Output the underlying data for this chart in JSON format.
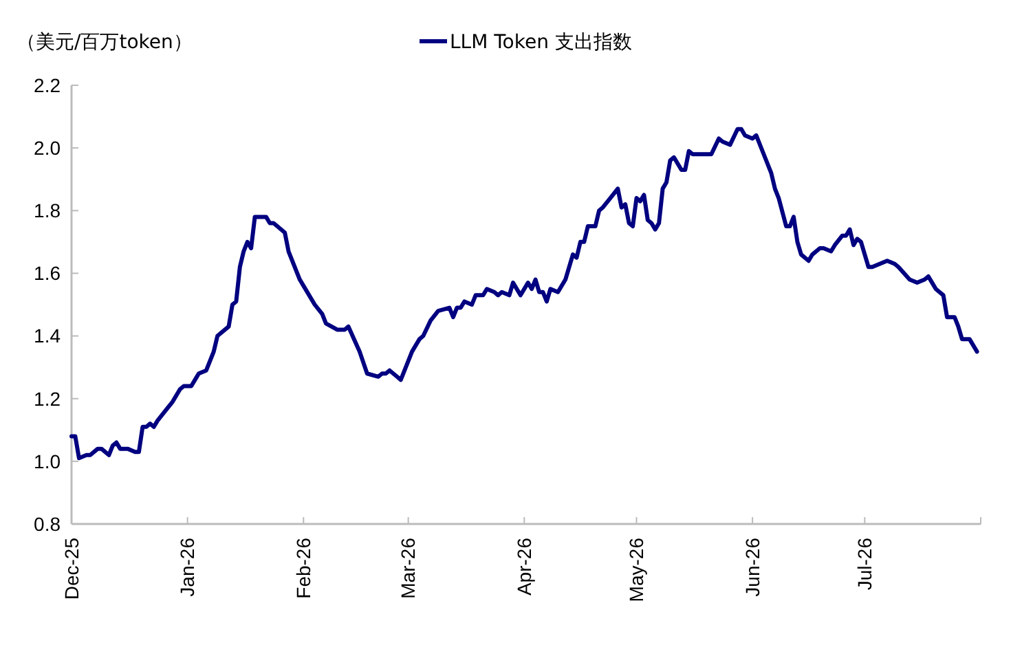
{
  "chart_data": {
    "type": "line",
    "ylabel": "（美元/百万token）",
    "legend": "top",
    "grid": false,
    "line_style": "solid",
    "marker": "none",
    "xlim": [
      "2025-12-01",
      "2026-08-01"
    ],
    "xticks": [
      {
        "value": "2025-12-01",
        "label": "Dec-25"
      },
      {
        "value": "2026-01-01",
        "label": "Jan-26"
      },
      {
        "value": "2026-02-01",
        "label": "Feb-26"
      },
      {
        "value": "2026-03-01",
        "label": "Mar-26"
      },
      {
        "value": "2026-04-01",
        "label": "Apr-26"
      },
      {
        "value": "2026-05-01",
        "label": "May-26"
      },
      {
        "value": "2026-06-01",
        "label": "Jun-26"
      },
      {
        "value": "2026-07-01",
        "label": "Jul-26"
      },
      {
        "value": "2026-08-01",
        "label": null
      }
    ],
    "ylim": [
      0.8,
      2.2
    ],
    "yticks": [
      {
        "value": 0.8,
        "label": "0.8"
      },
      {
        "value": 1.0,
        "label": "1.0"
      },
      {
        "value": 1.2,
        "label": "1.2"
      },
      {
        "value": 1.4,
        "label": "1.4"
      },
      {
        "value": 1.6,
        "label": "1.6"
      },
      {
        "value": 1.8,
        "label": "1.8"
      },
      {
        "value": 2.0,
        "label": "2.0"
      },
      {
        "value": 2.2,
        "label": "2.2"
      }
    ],
    "x": [
      "2025-12-01",
      "2025-12-02",
      "2025-12-03",
      "2025-12-05",
      "2025-12-06",
      "2025-12-08",
      "2025-12-09",
      "2025-12-11",
      "2025-12-12",
      "2025-12-13",
      "2025-12-14",
      "2025-12-16",
      "2025-12-18",
      "2025-12-19",
      "2025-12-20",
      "2025-12-21",
      "2025-12-22",
      "2025-12-23",
      "2025-12-24",
      "2025-12-26",
      "2025-12-28",
      "2025-12-30",
      "2025-12-31",
      "2026-01-02",
      "2026-01-03",
      "2026-01-04",
      "2026-01-06",
      "2026-01-08",
      "2026-01-09",
      "2026-01-12",
      "2026-01-13",
      "2026-01-14",
      "2026-01-15",
      "2026-01-16",
      "2026-01-17",
      "2026-01-18",
      "2026-01-19",
      "2026-01-21",
      "2026-01-22",
      "2026-01-23",
      "2026-01-24",
      "2026-01-25",
      "2026-01-27",
      "2026-01-28",
      "2026-01-31",
      "2026-02-01",
      "2026-02-04",
      "2026-02-06",
      "2026-02-07",
      "2026-02-10",
      "2026-02-12",
      "2026-02-13",
      "2026-02-16",
      "2026-02-18",
      "2026-02-21",
      "2026-02-22",
      "2026-02-23",
      "2026-02-24",
      "2026-02-26",
      "2026-02-27",
      "2026-03-02",
      "2026-03-04",
      "2026-03-05",
      "2026-03-07",
      "2026-03-09",
      "2026-03-12",
      "2026-03-13",
      "2026-03-14",
      "2026-03-15",
      "2026-03-16",
      "2026-03-18",
      "2026-03-19",
      "2026-03-21",
      "2026-03-22",
      "2026-03-24",
      "2026-03-25",
      "2026-03-26",
      "2026-03-28",
      "2026-03-29",
      "2026-03-31",
      "2026-04-02",
      "2026-04-03",
      "2026-04-04",
      "2026-04-05",
      "2026-04-06",
      "2026-04-07",
      "2026-04-08",
      "2026-04-10",
      "2026-04-12",
      "2026-04-14",
      "2026-04-15",
      "2026-04-16",
      "2026-04-17",
      "2026-04-18",
      "2026-04-20",
      "2026-04-21",
      "2026-04-22",
      "2026-04-24",
      "2026-04-26",
      "2026-04-27",
      "2026-04-28",
      "2026-04-29",
      "2026-04-30",
      "2026-05-01",
      "2026-05-02",
      "2026-05-03",
      "2026-05-04",
      "2026-05-05",
      "2026-05-06",
      "2026-05-07",
      "2026-05-08",
      "2026-05-09",
      "2026-05-10",
      "2026-05-11",
      "2026-05-13",
      "2026-05-14",
      "2026-05-15",
      "2026-05-16",
      "2026-05-18",
      "2026-05-21",
      "2026-05-23",
      "2026-05-24",
      "2026-05-26",
      "2026-05-28",
      "2026-05-29",
      "2026-05-30",
      "2026-06-01",
      "2026-06-02",
      "2026-06-04",
      "2026-06-06",
      "2026-06-07",
      "2026-06-08",
      "2026-06-10",
      "2026-06-11",
      "2026-06-12",
      "2026-06-13",
      "2026-06-14",
      "2026-06-16",
      "2026-06-17",
      "2026-06-19",
      "2026-06-20",
      "2026-06-22",
      "2026-06-23",
      "2026-06-25",
      "2026-06-26",
      "2026-06-27",
      "2026-06-28",
      "2026-06-29",
      "2026-06-30",
      "2026-07-02",
      "2026-07-03",
      "2026-07-05",
      "2026-07-07",
      "2026-07-09",
      "2026-07-10",
      "2026-07-13",
      "2026-07-15",
      "2026-07-17",
      "2026-07-18",
      "2026-07-19",
      "2026-07-20",
      "2026-07-22",
      "2026-07-23",
      "2026-07-25",
      "2026-07-26",
      "2026-07-27",
      "2026-07-29",
      "2026-07-31"
    ],
    "series": [
      {
        "name": "LLM Token 支出指数",
        "color": "#000080",
        "values": [
          1.08,
          1.08,
          1.01,
          1.02,
          1.02,
          1.04,
          1.04,
          1.02,
          1.05,
          1.06,
          1.04,
          1.04,
          1.03,
          1.03,
          1.11,
          1.11,
          1.12,
          1.11,
          1.13,
          1.16,
          1.19,
          1.23,
          1.24,
          1.24,
          1.26,
          1.28,
          1.29,
          1.35,
          1.4,
          1.43,
          1.5,
          1.51,
          1.62,
          1.67,
          1.7,
          1.68,
          1.78,
          1.78,
          1.78,
          1.76,
          1.76,
          1.75,
          1.73,
          1.67,
          1.58,
          1.56,
          1.5,
          1.47,
          1.44,
          1.42,
          1.42,
          1.43,
          1.35,
          1.28,
          1.27,
          1.28,
          1.28,
          1.29,
          1.27,
          1.26,
          1.35,
          1.39,
          1.4,
          1.45,
          1.48,
          1.49,
          1.46,
          1.49,
          1.49,
          1.51,
          1.5,
          1.53,
          1.53,
          1.55,
          1.54,
          1.53,
          1.54,
          1.53,
          1.57,
          1.53,
          1.57,
          1.55,
          1.58,
          1.54,
          1.54,
          1.51,
          1.55,
          1.54,
          1.58,
          1.66,
          1.65,
          1.7,
          1.7,
          1.75,
          1.75,
          1.8,
          1.81,
          1.84,
          1.87,
          1.81,
          1.82,
          1.76,
          1.75,
          1.84,
          1.83,
          1.85,
          1.77,
          1.76,
          1.74,
          1.76,
          1.87,
          1.89,
          1.96,
          1.97,
          1.93,
          1.93,
          1.99,
          1.98,
          1.98,
          1.98,
          2.03,
          2.02,
          2.01,
          2.06,
          2.06,
          2.04,
          2.03,
          2.04,
          1.98,
          1.92,
          1.87,
          1.84,
          1.75,
          1.75,
          1.78,
          1.7,
          1.66,
          1.64,
          1.66,
          1.68,
          1.68,
          1.67,
          1.69,
          1.72,
          1.72,
          1.74,
          1.69,
          1.71,
          1.7,
          1.62,
          1.62,
          1.63,
          1.64,
          1.63,
          1.62,
          1.58,
          1.57,
          1.58,
          1.59,
          1.57,
          1.55,
          1.53,
          1.46,
          1.46,
          1.43,
          1.39,
          1.39,
          1.35
        ]
      }
    ]
  }
}
